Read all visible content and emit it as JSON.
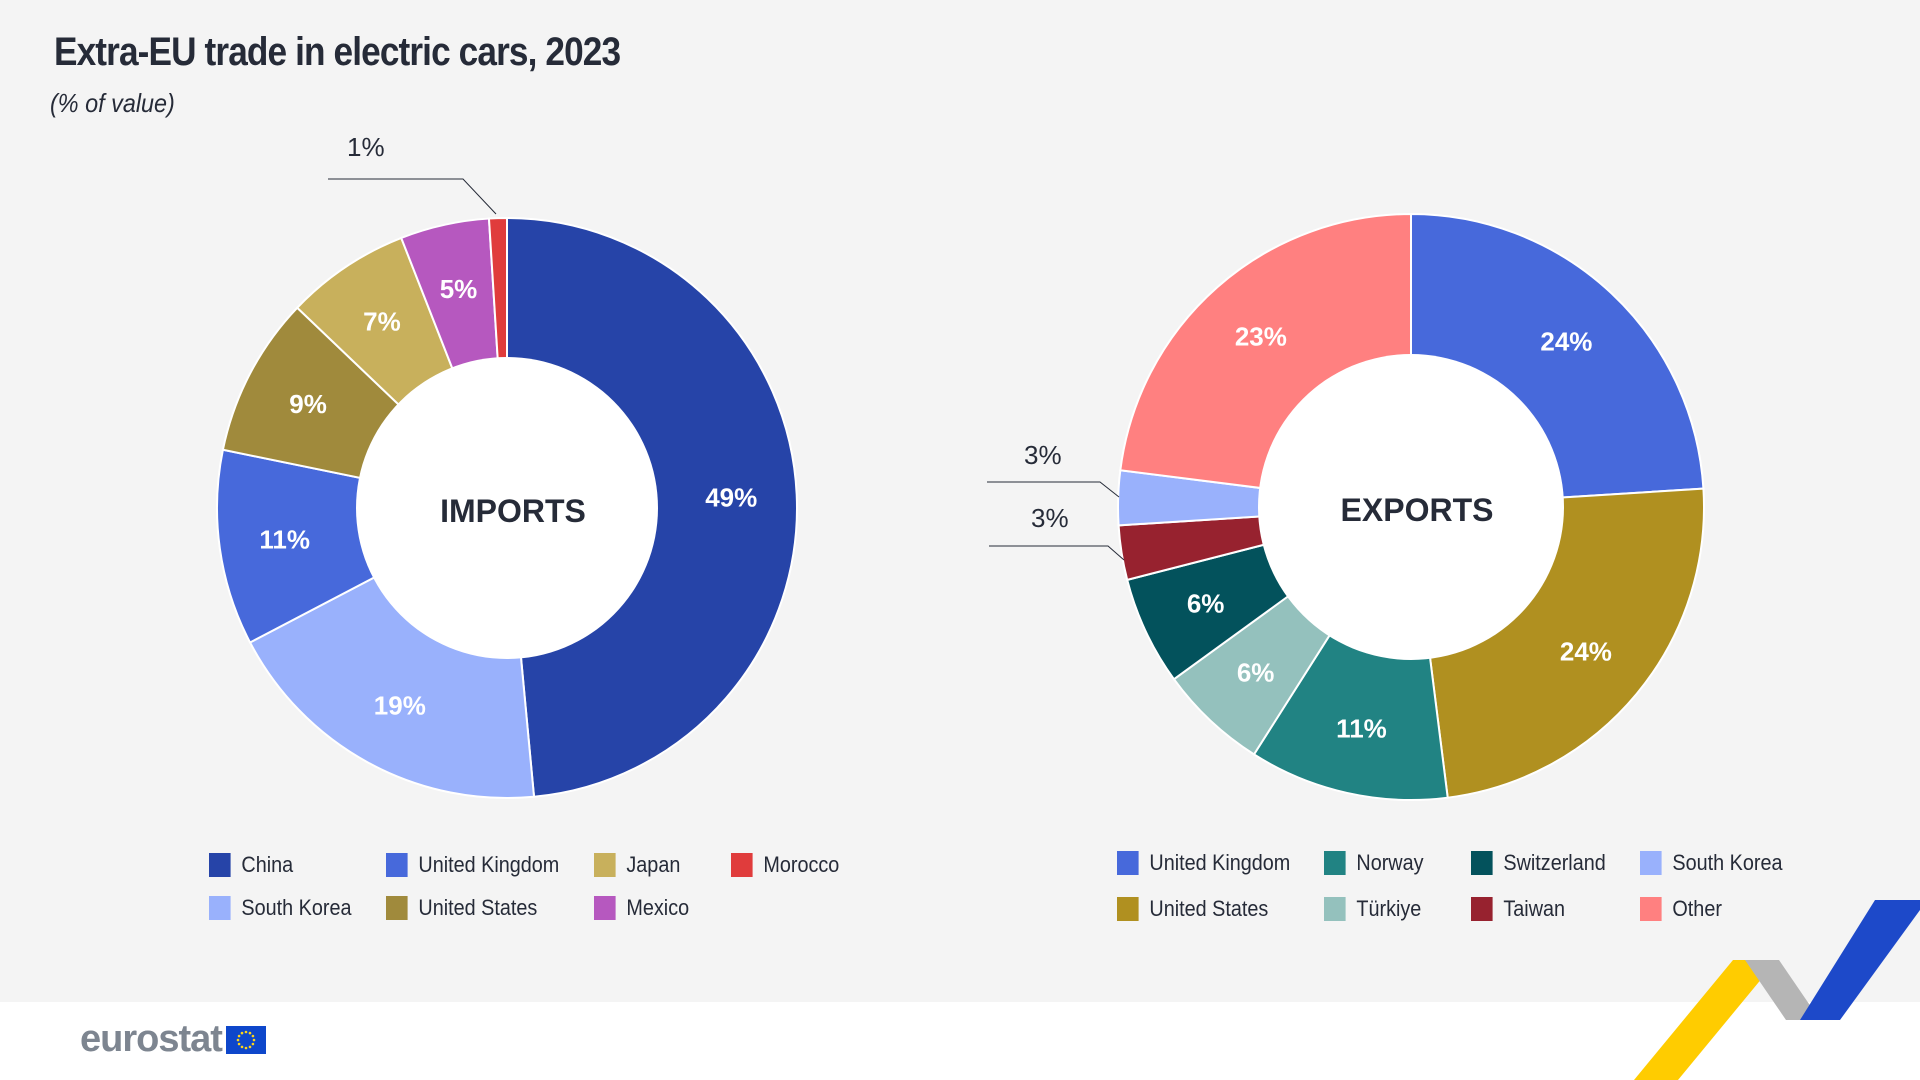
{
  "title": "Extra-EU trade in electric cars, 2023",
  "subtitle": "(% of value)",
  "logo": "eurostat",
  "chart_data": [
    {
      "type": "pie",
      "variant": "donut",
      "center_label": "IMPORTS",
      "order": "clockwise from top",
      "slices": [
        {
          "name": "China",
          "value": 49,
          "label": "49%",
          "color": "#2644a8"
        },
        {
          "name": "South Korea",
          "value": 19,
          "label": "19%",
          "color": "#99b1fc"
        },
        {
          "name": "United Kingdom",
          "value": 11,
          "label": "11%",
          "color": "#4769db"
        },
        {
          "name": "United States",
          "value": 9,
          "label": "9%",
          "color": "#a08a3c"
        },
        {
          "name": "Japan",
          "value": 7,
          "label": "7%",
          "color": "#c8b05c"
        },
        {
          "name": "Mexico",
          "value": 5,
          "label": "5%",
          "color": "#b658bf"
        },
        {
          "name": "Morocco",
          "value": 1,
          "label": "1%",
          "color": "#e03c3c"
        }
      ],
      "legend": [
        "China",
        "United Kingdom",
        "Japan",
        "Morocco",
        "South Korea",
        "United States",
        "Mexico"
      ],
      "legend_position": "bottom"
    },
    {
      "type": "pie",
      "variant": "donut",
      "center_label": "EXPORTS",
      "order": "clockwise from top",
      "slices": [
        {
          "name": "United Kingdom",
          "value": 24,
          "label": "24%",
          "color": "#4769db"
        },
        {
          "name": "United States",
          "value": 24,
          "label": "24%",
          "color": "#b09020"
        },
        {
          "name": "Norway",
          "value": 11,
          "label": "11%",
          "color": "#218383"
        },
        {
          "name": "Türkiye",
          "value": 6,
          "label": "6%",
          "color": "#94c1bd"
        },
        {
          "name": "Switzerland",
          "value": 6,
          "label": "6%",
          "color": "#03525c"
        },
        {
          "name": "Taiwan",
          "value": 3,
          "label": "3%",
          "color": "#97222f"
        },
        {
          "name": "South Korea",
          "value": 3,
          "label": "3%",
          "color": "#99b1fc"
        },
        {
          "name": "Other",
          "value": 23,
          "label": "23%",
          "color": "#ff8080"
        }
      ],
      "legend": [
        "United Kingdom",
        "Norway",
        "Switzerland",
        "South Korea",
        "United States",
        "Türkiye",
        "Taiwan",
        "Other"
      ],
      "legend_position": "bottom"
    }
  ]
}
